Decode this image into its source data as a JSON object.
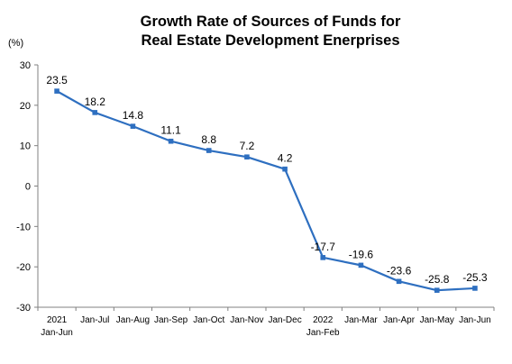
{
  "chart_data": {
    "type": "line",
    "title": "Growth Rate of Sources of Funds for Real Estate Development Enerprises",
    "unit": "(%)",
    "categories": [
      [
        "2021",
        "Jan-Jun"
      ],
      [
        "Jan-Jul"
      ],
      [
        "Jan-Aug"
      ],
      [
        "Jan-Sep"
      ],
      [
        "Jan-Oct"
      ],
      [
        "Jan-Nov"
      ],
      [
        "Jan-Dec"
      ],
      [
        "2022",
        "Jan-Feb"
      ],
      [
        "Jan-Mar"
      ],
      [
        "Jan-Apr"
      ],
      [
        "Jan-May"
      ],
      [
        "Jan-Jun"
      ]
    ],
    "series": [
      {
        "values": [
          23.5,
          18.2,
          14.8,
          11.1,
          8.8,
          7.2,
          4.2,
          -17.7,
          -19.6,
          -23.6,
          -25.8,
          -25.3
        ],
        "labels": [
          "23.5",
          "18.2",
          "14.8",
          "11.1",
          "8.8",
          "7.2",
          "4.2",
          "-17.7",
          "-19.6",
          "-23.6",
          "-25.8",
          "-25.3"
        ]
      }
    ],
    "ylim": [
      -30,
      30
    ],
    "yticks": [
      30,
      20,
      10,
      0,
      -10,
      -20,
      -30
    ],
    "grid": false,
    "legend": "none",
    "line_color": "#2e6fc0"
  }
}
